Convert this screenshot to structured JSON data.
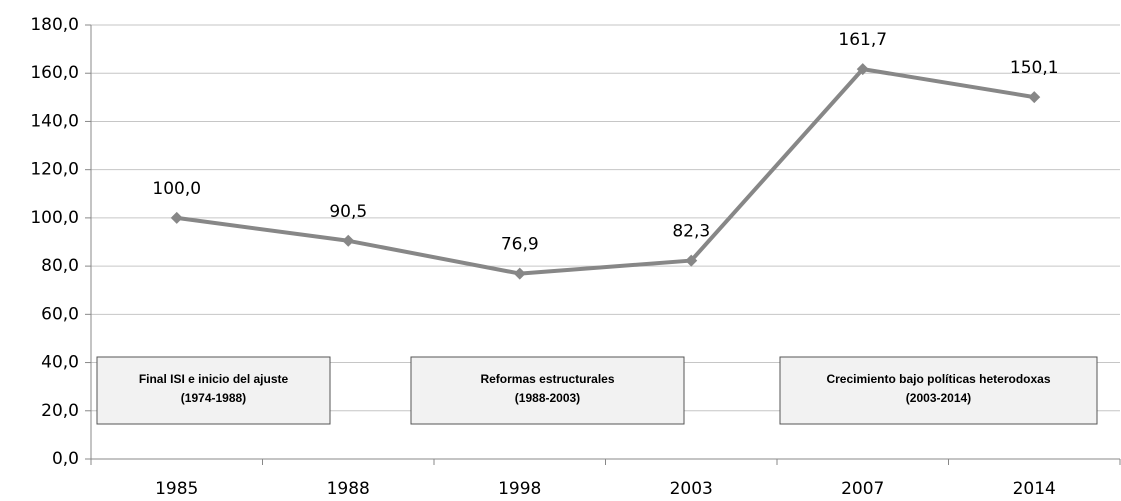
{
  "chart_data": {
    "type": "line",
    "categories": [
      "1985",
      "1988",
      "1998",
      "2003",
      "2007",
      "2014"
    ],
    "series": [
      {
        "color": "#878787",
        "values": [
          100.0,
          90.5,
          76.9,
          82.3,
          161.7,
          150.1
        ],
        "value_labels": [
          "100,0",
          "90,5",
          "76,9",
          "82,3",
          "161,7",
          "150,1"
        ]
      }
    ],
    "ylim": [
      0,
      180
    ],
    "yticks": [
      {
        "value": 0,
        "label": "0,0"
      },
      {
        "value": 20,
        "label": "20,0"
      },
      {
        "value": 40,
        "label": "40,0"
      },
      {
        "value": 60,
        "label": "60,0"
      },
      {
        "value": 80,
        "label": "80,0"
      },
      {
        "value": 100,
        "label": "100,0"
      },
      {
        "value": 120,
        "label": "120,0"
      },
      {
        "value": 140,
        "label": "140,0"
      },
      {
        "value": 160,
        "label": "160,0"
      },
      {
        "value": 180,
        "label": "180,0"
      }
    ],
    "grid": true,
    "annotations": [
      {
        "lines": [
          "Final ISI e inicio del ajuste",
          "(1974-1988)"
        ]
      },
      {
        "lines": [
          "Reformas estructurales",
          "(1988-2003)"
        ]
      },
      {
        "lines": [
          "Crecimiento bajo políticas heterodoxas",
          "(2003-2014)"
        ]
      }
    ]
  }
}
